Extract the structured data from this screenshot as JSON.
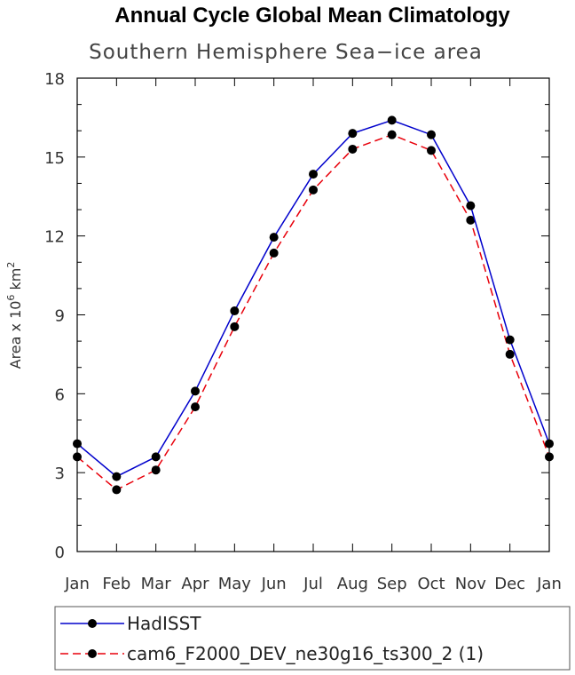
{
  "chart_data": {
    "type": "line",
    "title": "Annual Cycle Global Mean Climatology",
    "subtitle": "Southern Hemisphere Sea−ice area",
    "ylabel_prefix": "Area x 10",
    "ylabel_exp1": "6",
    "ylabel_mid": " km",
    "ylabel_exp2": "2",
    "xlabel": "",
    "categories": [
      "Jan",
      "Feb",
      "Mar",
      "Apr",
      "May",
      "Jun",
      "Jul",
      "Aug",
      "Sep",
      "Oct",
      "Nov",
      "Dec",
      "Jan"
    ],
    "ylim": [
      0,
      18
    ],
    "yticks": [
      0,
      3,
      6,
      9,
      12,
      15,
      18
    ],
    "grid": false,
    "legend_position": "bottom",
    "series": [
      {
        "name": "HadISST",
        "color": "#0000cc",
        "dash": "solid",
        "values": [
          4.1,
          2.85,
          3.6,
          6.1,
          9.15,
          11.95,
          14.35,
          15.9,
          16.4,
          15.85,
          13.15,
          8.05,
          4.1
        ]
      },
      {
        "name": "cam6_F2000_DEV_ne30g16_ts300_2 (1)",
        "color": "#e8000b",
        "dash": "dashed",
        "values": [
          3.6,
          2.35,
          3.1,
          5.5,
          8.55,
          11.35,
          13.75,
          15.3,
          15.85,
          15.25,
          12.6,
          7.5,
          3.6
        ]
      }
    ]
  }
}
